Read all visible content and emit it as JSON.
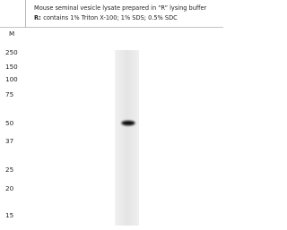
{
  "header": {
    "title": "Mouse seminal vesicle lysate prepared in “R” lysing buffer",
    "note_label": "R:",
    "note_text": "contains 1% Triton X-100; 1% SDS; 0.5% SDC"
  },
  "marker_label": "M",
  "markers": [
    "250",
    "150",
    "100",
    "75",
    "50",
    "37",
    "25",
    "20",
    "15"
  ]
}
